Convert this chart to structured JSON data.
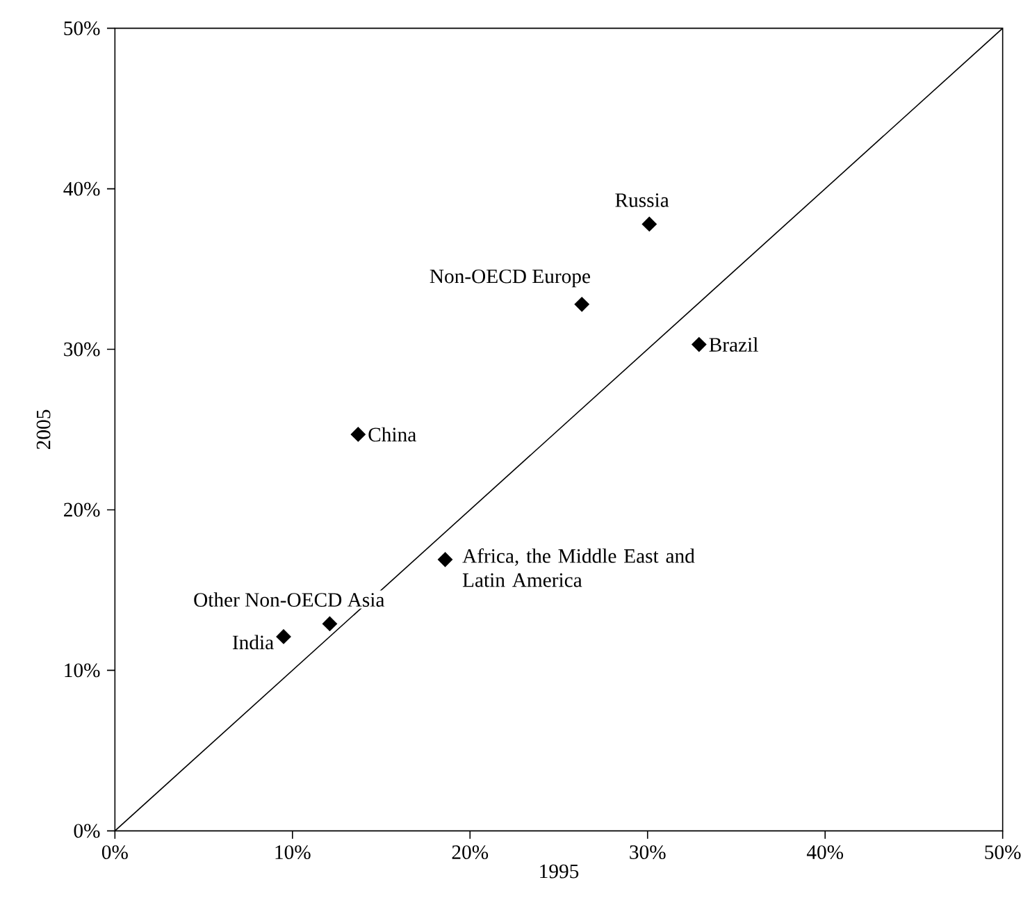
{
  "chart_data": {
    "type": "scatter",
    "xlabel": "1995",
    "ylabel": "2005",
    "xlim": [
      0,
      50
    ],
    "ylim": [
      0,
      50
    ],
    "xticks": [
      {
        "value": 0,
        "label": "0%"
      },
      {
        "value": 10,
        "label": "10%"
      },
      {
        "value": 20,
        "label": "20%"
      },
      {
        "value": 30,
        "label": "30%"
      },
      {
        "value": 40,
        "label": "40%"
      },
      {
        "value": 50,
        "label": "50%"
      }
    ],
    "yticks": [
      {
        "value": 0,
        "label": "0%"
      },
      {
        "value": 10,
        "label": "10%"
      },
      {
        "value": 20,
        "label": "20%"
      },
      {
        "value": 30,
        "label": "30%"
      },
      {
        "value": 40,
        "label": "40%"
      },
      {
        "value": 50,
        "label": "50%"
      }
    ],
    "marker": "diamond",
    "series": [
      {
        "color": "#000000",
        "x": [
          9.5,
          12.1,
          18.6,
          13.7,
          26.3,
          32.9,
          30.1
        ],
        "values": [
          12.1,
          12.9,
          16.9,
          24.7,
          32.8,
          30.3,
          37.8
        ]
      },
      {
        "type": "line",
        "color": "#000000",
        "marker": "none",
        "x": [
          0,
          50
        ],
        "values": [
          0,
          50
        ]
      }
    ],
    "annotations": [
      {
        "text": "India",
        "x": 9.5,
        "y": 12.1
      },
      {
        "text": "Other Non-OECD Asia",
        "x": 12.1,
        "y": 12.9
      },
      {
        "text": "Africa, the Middle East and Latin America",
        "x": 18.6,
        "y": 16.9
      },
      {
        "text": "China",
        "x": 13.7,
        "y": 24.7
      },
      {
        "text": "Non-OECD Europe",
        "x": 26.3,
        "y": 32.8
      },
      {
        "text": "Brazil",
        "x": 32.9,
        "y": 30.3
      },
      {
        "text": "Russia",
        "x": 30.1,
        "y": 37.8
      }
    ]
  }
}
